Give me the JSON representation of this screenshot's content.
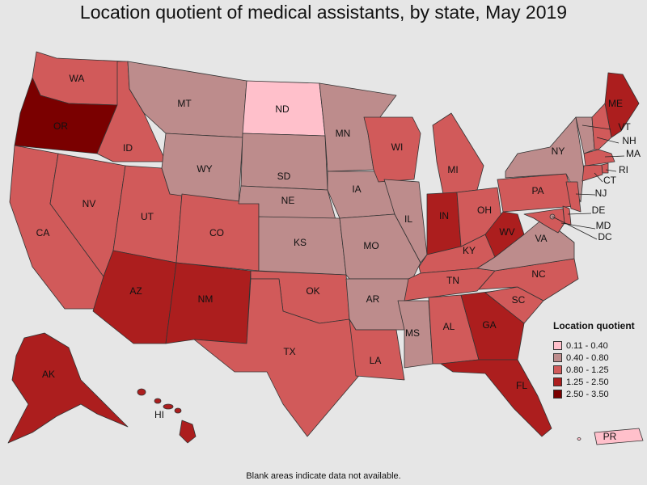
{
  "title": "Location quotient of medical assistants, by state, May 2019",
  "footnote": "Blank areas indicate data not available.",
  "legend": {
    "title": "Location quotient",
    "items": [
      {
        "label": "0.11 - 0.40",
        "color": "#ffc0cb"
      },
      {
        "label": "0.40 - 0.80",
        "color": "#bd8c8c"
      },
      {
        "label": "0.80 - 1.25",
        "color": "#d15a5a"
      },
      {
        "label": "1.25 - 2.50",
        "color": "#ac1e1e"
      },
      {
        "label": "2.50 - 3.50",
        "color": "#7a0000"
      }
    ]
  },
  "states": [
    {
      "abbr": "WA",
      "tier": 2
    },
    {
      "abbr": "OR",
      "tier": 4
    },
    {
      "abbr": "CA",
      "tier": 2
    },
    {
      "abbr": "ID",
      "tier": 2
    },
    {
      "abbr": "NV",
      "tier": 2
    },
    {
      "abbr": "UT",
      "tier": 2
    },
    {
      "abbr": "AZ",
      "tier": 3
    },
    {
      "abbr": "MT",
      "tier": 1
    },
    {
      "abbr": "WY",
      "tier": 1
    },
    {
      "abbr": "CO",
      "tier": 2
    },
    {
      "abbr": "NM",
      "tier": 3
    },
    {
      "abbr": "ND",
      "tier": 0
    },
    {
      "abbr": "SD",
      "tier": 1
    },
    {
      "abbr": "NE",
      "tier": 1
    },
    {
      "abbr": "KS",
      "tier": 1
    },
    {
      "abbr": "OK",
      "tier": 2
    },
    {
      "abbr": "TX",
      "tier": 2
    },
    {
      "abbr": "MN",
      "tier": 1
    },
    {
      "abbr": "IA",
      "tier": 1
    },
    {
      "abbr": "MO",
      "tier": 1
    },
    {
      "abbr": "AR",
      "tier": 1
    },
    {
      "abbr": "LA",
      "tier": 2
    },
    {
      "abbr": "WI",
      "tier": 2
    },
    {
      "abbr": "IL",
      "tier": 1
    },
    {
      "abbr": "MS",
      "tier": 1
    },
    {
      "abbr": "MI",
      "tier": 2
    },
    {
      "abbr": "IN",
      "tier": 3
    },
    {
      "abbr": "KY",
      "tier": 2
    },
    {
      "abbr": "TN",
      "tier": 2
    },
    {
      "abbr": "AL",
      "tier": 2
    },
    {
      "abbr": "OH",
      "tier": 2
    },
    {
      "abbr": "WV",
      "tier": 3
    },
    {
      "abbr": "GA",
      "tier": 3
    },
    {
      "abbr": "FL",
      "tier": 3
    },
    {
      "abbr": "SC",
      "tier": 2
    },
    {
      "abbr": "NC",
      "tier": 2
    },
    {
      "abbr": "VA",
      "tier": 1
    },
    {
      "abbr": "PA",
      "tier": 2
    },
    {
      "abbr": "NY",
      "tier": 1
    },
    {
      "abbr": "ME",
      "tier": 3
    },
    {
      "abbr": "VT",
      "tier": 1
    },
    {
      "abbr": "NH",
      "tier": 2
    },
    {
      "abbr": "MA",
      "tier": 2
    },
    {
      "abbr": "RI",
      "tier": 2
    },
    {
      "abbr": "CT",
      "tier": 2
    },
    {
      "abbr": "NJ",
      "tier": 2
    },
    {
      "abbr": "DE",
      "tier": 2
    },
    {
      "abbr": "MD",
      "tier": 2
    },
    {
      "abbr": "DC",
      "tier": 1
    },
    {
      "abbr": "AK",
      "tier": 3
    },
    {
      "abbr": "HI",
      "tier": 3
    },
    {
      "abbr": "PR",
      "tier": 0
    }
  ]
}
